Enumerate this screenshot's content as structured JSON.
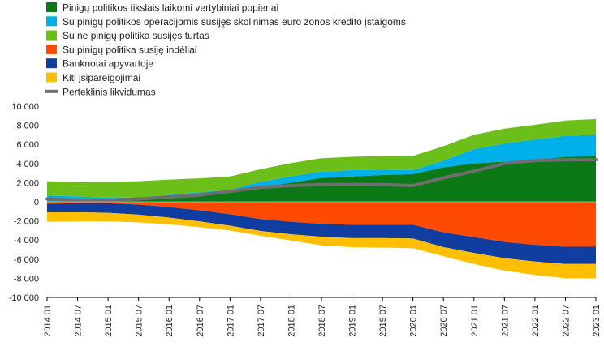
{
  "chart_data": {
    "type": "area",
    "title": "",
    "xlabel": "",
    "ylabel": "",
    "ylim": [
      -10000,
      10000
    ],
    "yticks": [
      10000,
      8000,
      6000,
      4000,
      2000,
      0,
      -2000,
      -4000,
      -6000,
      -8000,
      -10000
    ],
    "ytick_labels": [
      "10 000",
      "8 000",
      "6 000",
      "4 000",
      "2 000",
      "0",
      "-2 000",
      "-4 000",
      "-6 000",
      "-8 000",
      "-10 000"
    ],
    "xticks": [
      "2014 01",
      "2014 07",
      "2015 01",
      "2015 07",
      "2016 01",
      "2016 07",
      "2017 01",
      "2017 07",
      "2018 01",
      "2018 07",
      "2019 01",
      "2019 07",
      "2020 01",
      "2020 07",
      "2021 01",
      "2021 07",
      "2022 01",
      "2022 07",
      "2023 01"
    ],
    "x": [
      "2014 01",
      "2014 07",
      "2015 01",
      "2015 07",
      "2016 01",
      "2016 07",
      "2017 01",
      "2017 07",
      "2018 01",
      "2018 07",
      "2019 01",
      "2019 07",
      "2020 01",
      "2020 07",
      "2021 01",
      "2021 07",
      "2022 01",
      "2022 07",
      "2023 01"
    ],
    "grid": false,
    "legend_position": "top-left",
    "series": [
      {
        "name": "Pinigų politikos tikslais laikomi vertybiniai popieriai",
        "color": "#0b7a16",
        "stack": "positive",
        "values": [
          50,
          60,
          80,
          200,
          420,
          700,
          950,
          1500,
          2000,
          2500,
          2650,
          2800,
          2900,
          3600,
          4000,
          4200,
          4400,
          4700,
          4800
        ]
      },
      {
        "name": "Su pinigų politikos operacijomis susijęs skolinimas euro zonos kredito įstaigoms",
        "color": "#00b0e8",
        "stack": "positive",
        "values": [
          600,
          500,
          350,
          250,
          300,
          300,
          300,
          600,
          650,
          650,
          650,
          550,
          400,
          700,
          1500,
          1900,
          2100,
          2200,
          2200
        ]
      },
      {
        "name": "Su ne pinigų politika susijęs turtas",
        "color": "#6cbf19",
        "stack": "positive",
        "values": [
          1500,
          1500,
          1650,
          1700,
          1600,
          1450,
          1400,
          1300,
          1400,
          1400,
          1400,
          1450,
          1500,
          1500,
          1500,
          1550,
          1550,
          1600,
          1650
        ]
      },
      {
        "name": "Su pinigų politika susiję indėliai",
        "color": "#ff4b00",
        "stack": "negative",
        "values": [
          -200,
          -150,
          -150,
          -300,
          -550,
          -900,
          -1300,
          -1800,
          -2100,
          -2300,
          -2400,
          -2400,
          -2400,
          -3200,
          -3700,
          -4200,
          -4500,
          -4700,
          -4700
        ]
      },
      {
        "name": "Banknotai apyvartoje",
        "color": "#0f3ea0",
        "stack": "negative",
        "values": [
          -900,
          -950,
          -1000,
          -1050,
          -1100,
          -1150,
          -1200,
          -1250,
          -1300,
          -1350,
          -1400,
          -1400,
          -1450,
          -1550,
          -1650,
          -1700,
          -1750,
          -1800,
          -1800
        ]
      },
      {
        "name": "Kiti įsipareigojimai",
        "color": "#ffbf00",
        "stack": "negative",
        "values": [
          -1000,
          -950,
          -900,
          -800,
          -700,
          -600,
          -500,
          -500,
          -650,
          -900,
          -950,
          -1000,
          -1000,
          -950,
          -1150,
          -1300,
          -1400,
          -1500,
          -1500
        ]
      },
      {
        "name": "Perteklinis likvidumas",
        "color": "#6e6e6e",
        "stack": "line",
        "values": [
          300,
          150,
          150,
          300,
          500,
          700,
          1100,
          1500,
          1700,
          1800,
          1800,
          1800,
          1700,
          2500,
          3200,
          4000,
          4300,
          4400,
          4400
        ]
      }
    ]
  }
}
